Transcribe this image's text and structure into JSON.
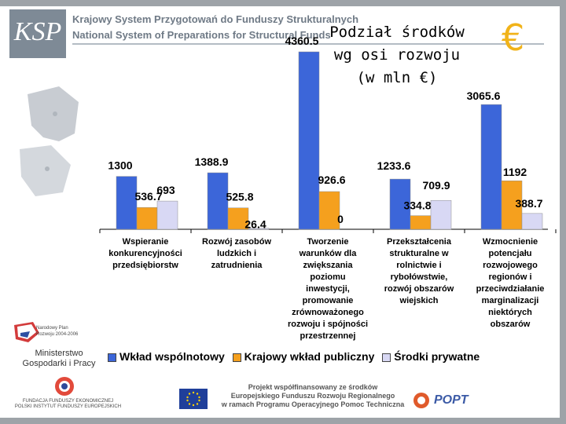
{
  "header": {
    "logo_text": "KSP",
    "line_pl": "Krajowy System Przygotowań do Funduszy Strukturalnych",
    "line_en": "National System of Preparations for Structural Funds"
  },
  "chart_data": {
    "type": "bar",
    "title_lines": [
      "Podział środków",
      "wg osi rozwoju",
      "(w mln €)"
    ],
    "categories": [
      [
        "Wspieranie",
        "konkurencyjności",
        "przedsiębiorstw"
      ],
      [
        "Rozwój zasobów",
        "ludzkich i",
        "zatrudnienia"
      ],
      [
        "Tworzenie",
        "warunków dla",
        "zwiększania",
        "poziomu",
        "inwestycji,",
        "promowanie",
        "zrównoważonego",
        "rozwoju i spójności",
        "przestrzennej"
      ],
      [
        "Przekształcenia",
        "strukturalne w",
        "rolnictwie i",
        "rybołówstwie,",
        "rozwój obszarów",
        "wiejskich"
      ],
      [
        "Wzmocnienie",
        "potencjału",
        "rozwojowego",
        "regionów i",
        "przeciwdziałanie",
        "marginalizacji",
        "niektórych",
        "obszarów"
      ]
    ],
    "series": [
      {
        "name": "Wkład wspólnotowy",
        "color": "#3c66d9",
        "values": [
          1300,
          1388.9,
          4360.5,
          1233.6,
          3065.6
        ],
        "labels": [
          "1300",
          "1388.9",
          "4360.5",
          "1233.6",
          "3065.6"
        ]
      },
      {
        "name": "Krajowy wkład publiczny",
        "color": "#f5a01e",
        "values": [
          536.7,
          525.8,
          926.6,
          334.8,
          1192
        ],
        "labels": [
          "536.7",
          "525.8",
          "926.6",
          "334.8",
          "1192"
        ]
      },
      {
        "name": "Środki prywatne",
        "color": "#d8d8f4",
        "values": [
          693,
          26.4,
          0,
          709.9,
          388.7
        ],
        "labels": [
          "693",
          "26.4",
          "0",
          "709.9",
          "388.7"
        ]
      }
    ],
    "ylim": [
      0,
      4400
    ],
    "grid": false,
    "legend_position": "bottom",
    "currency_symbol": "€"
  },
  "sidebar": {
    "plan_logo_text": [
      "Narodowy Plan",
      "Rozwoju 2004-2006"
    ],
    "ministry_lines": [
      "Ministerstwo",
      "Gospodarki i Pracy"
    ],
    "ffe_text": [
      "FUNDACJA FUNDUSZY EKONOMICZNEJ",
      "POLSKI INSTYTUT FUNDUSZY EUROPEJSKICH"
    ]
  },
  "footer": {
    "lines": [
      "Projekt współfinansowany ze środków",
      "Europejskiego Funduszu Rozwoju Regionalnego",
      "w ramach Programu Operacyjnego Pomoc Techniczna"
    ],
    "popt_text": "POPT"
  }
}
